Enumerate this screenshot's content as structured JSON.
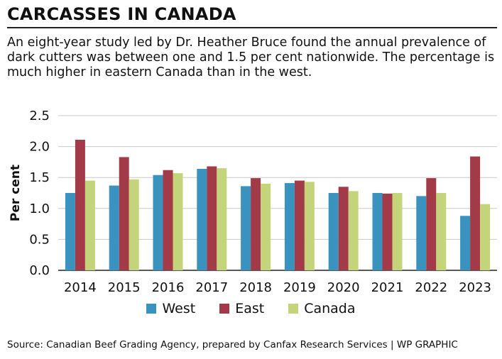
{
  "title": "CARCASSES IN CANADA",
  "subtitle": "An eight-year study led by Dr. Heather Bruce found the annual prevalence of dark cutters was between one and 1.5 per cent nationwide. The percentage is much higher in eastern Canada than in the west.",
  "source": "Source: Canadian Beef Grading Agency, prepared by Canfax Research Services  |  WP GRAPHIC",
  "chart_data": {
    "type": "bar",
    "categories": [
      "2014",
      "2015",
      "2016",
      "2017",
      "2018",
      "2019",
      "2020",
      "2021",
      "2022",
      "2023"
    ],
    "series": [
      {
        "name": "West",
        "color": "#3a93bf",
        "values": [
          1.25,
          1.37,
          1.54,
          1.64,
          1.36,
          1.41,
          1.25,
          1.25,
          1.2,
          0.88
        ]
      },
      {
        "name": "East",
        "color": "#a33a48",
        "values": [
          2.11,
          1.83,
          1.62,
          1.68,
          1.49,
          1.45,
          1.35,
          1.24,
          1.49,
          1.84
        ]
      },
      {
        "name": "Canada",
        "color": "#c4d47a",
        "values": [
          1.45,
          1.47,
          1.57,
          1.65,
          1.4,
          1.43,
          1.28,
          1.25,
          1.25,
          1.07
        ]
      }
    ],
    "ylabel": "Per cent",
    "ylim": [
      0,
      2.5
    ],
    "yticks": [
      "0.0",
      "0.5",
      "1.0",
      "1.5",
      "2.0",
      "2.5"
    ],
    "grid": true,
    "legend": "bottom"
  }
}
